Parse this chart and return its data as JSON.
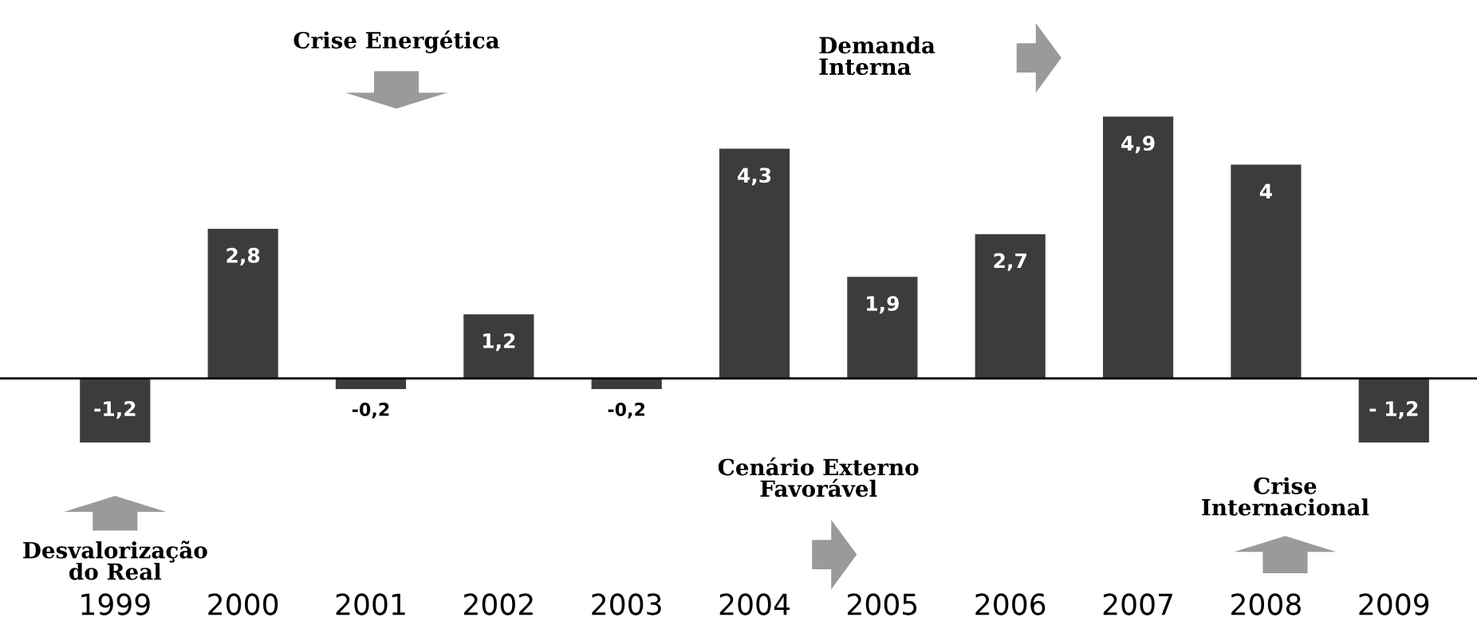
{
  "chart_data": {
    "type": "bar",
    "categories": [
      "1999",
      "2000",
      "2001",
      "2002",
      "2003",
      "2004",
      "2005",
      "2006",
      "2007",
      "2008",
      "2009"
    ],
    "values": [
      -1.2,
      2.8,
      -0.2,
      1.2,
      -0.2,
      4.3,
      1.9,
      2.7,
      4.9,
      4,
      -1.2
    ],
    "value_labels": [
      "-1,2",
      "2,8",
      "-0,2",
      "1,2",
      "-0,2",
      "4,3",
      "1,9",
      "2,7",
      "4,9",
      "4",
      "- 1,2"
    ],
    "color": "#3c3c3c",
    "annotations": [
      "Crise Energética",
      "Demanda\nInterna",
      "Cenário Externo\nFavorável",
      "Desvalorização\ndo Real",
      "Crise\nInternacional"
    ]
  }
}
